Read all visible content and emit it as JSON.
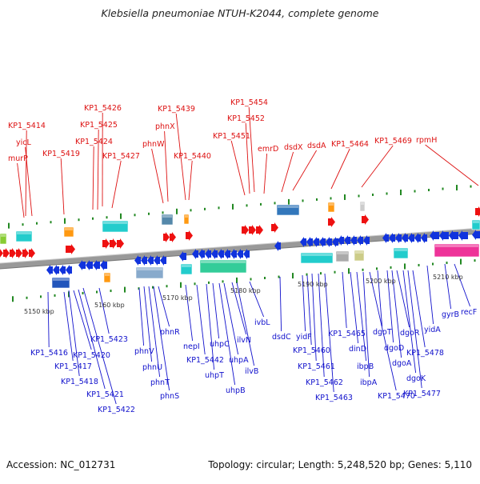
{
  "title": "Klebsiella pneumoniae NTUH-K2044, complete genome",
  "footer": {
    "accession": "Accession: NC_012731",
    "summary": "Topology: circular; Length: 5,248,520 bp; Genes: 5,110"
  },
  "colors": {
    "forward_label": "#dd1111",
    "reverse_label": "#1111cc",
    "forward_arrow": "#ee1111",
    "reverse_arrow": "#1133dd",
    "backbone": "#999999",
    "tick": "#228822"
  },
  "kbp_ticks": [
    "5150 kbp",
    "5160 kbp",
    "5170 kbp",
    "5180 kbp",
    "5190 kbp",
    "5200 kbp",
    "5210 kbp"
  ],
  "forward_genes": [
    "KP1_5414",
    "yicL",
    "murP",
    "KP1_5419",
    "KP1_5426",
    "KP1_5425",
    "KP1_5424",
    "KP1_5427",
    "phnX",
    "phnW",
    "KP1_5439",
    "KP1_5440",
    "KP1_5454",
    "KP1_5452",
    "KP1_5451",
    "emrD",
    "dsdX",
    "dsdA",
    "KP1_5464",
    "KP1_5469",
    "rpmH"
  ],
  "reverse_genes": [
    "KP1_5416",
    "KP1_5417",
    "KP1_5418",
    "KP1_5420",
    "KP1_5421",
    "KP1_5422",
    "KP1_5423",
    "phnV",
    "phnU",
    "phnT",
    "phnS",
    "phnR",
    "nepI",
    "KP1_5442",
    "uhpT",
    "uhpC",
    "uhpB",
    "uhpA",
    "ilvN",
    "ilvB",
    "ivbL",
    "dsdC",
    "yidF",
    "KP1_5460",
    "KP1_5461",
    "KP1_5462",
    "KP1_5463",
    "KP1_5465",
    "dinD",
    "ibpB",
    "ibpA",
    "KP1_5470",
    "dgoT",
    "dgoD",
    "dgoA",
    "dgoR",
    "dgoK",
    "KP1_5477",
    "KP1_5478",
    "yidA",
    "gyrB",
    "recF"
  ]
}
